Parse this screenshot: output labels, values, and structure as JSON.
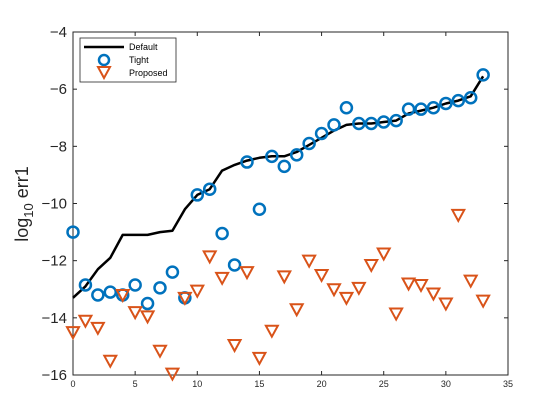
{
  "chart_data": {
    "type": "scatter",
    "title": "",
    "xlabel": "",
    "ylabel_main": "log",
    "ylabel_sub": "10",
    "ylabel_rest": " err1",
    "xlim": [
      0,
      35
    ],
    "ylim": [
      -16,
      -4
    ],
    "x_ticks": [
      0,
      5,
      10,
      15,
      20,
      25,
      30,
      35
    ],
    "y_ticks": [
      -4,
      -6,
      -8,
      -10,
      -12,
      -14,
      -16
    ],
    "x_tick_labels": [
      "0",
      "5",
      "10",
      "15",
      "20",
      "25",
      "30",
      "35"
    ],
    "y_tick_labels": [
      "−4",
      "−6",
      "−8",
      "−10",
      "−12",
      "−14",
      "−16"
    ],
    "grid": false,
    "legend_position": "top-left",
    "series": [
      {
        "name": "Default",
        "marker": "line",
        "color": "#000000",
        "x": [
          0,
          1,
          2,
          3,
          4,
          5,
          6,
          7,
          8,
          9,
          10,
          11,
          12,
          13,
          14,
          15,
          16,
          17,
          18,
          19,
          20,
          21,
          22,
          23,
          24,
          25,
          26,
          27,
          28,
          29,
          30,
          31,
          32,
          33
        ],
        "y": [
          -13.3,
          -12.9,
          -12.3,
          -11.9,
          -11.1,
          -11.1,
          -11.1,
          -11.0,
          -10.95,
          -10.2,
          -9.7,
          -9.5,
          -8.85,
          -8.65,
          -8.5,
          -8.4,
          -8.35,
          -8.35,
          -8.2,
          -7.95,
          -7.7,
          -7.45,
          -7.25,
          -7.2,
          -7.2,
          -7.15,
          -7.1,
          -6.85,
          -6.75,
          -6.65,
          -6.5,
          -6.4,
          -6.25,
          -5.55
        ]
      },
      {
        "name": "Tight",
        "marker": "circle",
        "color": "#0072BD",
        "x": [
          0,
          1,
          2,
          3,
          4,
          5,
          6,
          7,
          8,
          9,
          10,
          11,
          12,
          13,
          14,
          15,
          16,
          17,
          18,
          19,
          20,
          21,
          22,
          23,
          24,
          25,
          26,
          27,
          28,
          29,
          30,
          31,
          32,
          33
        ],
        "y": [
          -11.0,
          -12.85,
          -13.2,
          -13.1,
          -13.2,
          -12.85,
          -13.5,
          -12.95,
          -12.4,
          -13.3,
          -9.7,
          -9.5,
          -11.05,
          -12.15,
          -8.55,
          -10.2,
          -8.35,
          -8.7,
          -8.3,
          -7.9,
          -7.55,
          -7.25,
          -6.65,
          -7.2,
          -7.2,
          -7.15,
          -7.1,
          -6.7,
          -6.7,
          -6.65,
          -6.5,
          -6.4,
          -6.3,
          -5.5
        ]
      },
      {
        "name": "Proposed",
        "marker": "triangle-down",
        "color": "#D95319",
        "x": [
          0,
          1,
          2,
          3,
          4,
          5,
          6,
          7,
          8,
          9,
          10,
          11,
          12,
          13,
          14,
          15,
          16,
          17,
          18,
          19,
          20,
          21,
          22,
          23,
          24,
          25,
          26,
          27,
          28,
          29,
          30,
          31,
          32,
          33
        ],
        "y": [
          -14.5,
          -14.1,
          -14.35,
          -15.5,
          -13.2,
          -13.8,
          -13.95,
          -15.15,
          -15.95,
          -13.3,
          -13.05,
          -11.85,
          -12.6,
          -14.95,
          -12.4,
          -15.4,
          -14.45,
          -12.55,
          -13.7,
          -12.0,
          -12.5,
          -13.0,
          -13.3,
          -12.95,
          -12.15,
          -11.75,
          -13.85,
          -12.8,
          -12.85,
          -13.15,
          -13.5,
          -10.4,
          -12.7,
          -13.4
        ]
      }
    ]
  }
}
